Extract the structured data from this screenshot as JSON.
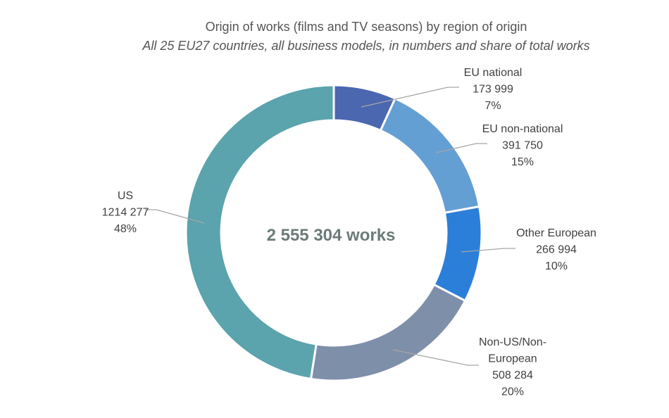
{
  "chart_data": {
    "type": "pie",
    "title": "Origin of works (films and TV seasons) by region of origin",
    "subtitle": "All 25 EU27 countries, all business models, in numbers and share of total works",
    "center_label": "2 555 304 works",
    "slices": [
      {
        "name": "EU national",
        "value": 173999,
        "value_label": "173 999",
        "share_label": "7%",
        "color": "#4a67b0"
      },
      {
        "name": "EU non-national",
        "value": 391750,
        "value_label": "391 750",
        "share_label": "15%",
        "color": "#649fd4"
      },
      {
        "name": "Other European",
        "value": 266994,
        "value_label": "266 994",
        "share_label": "10%",
        "color": "#2b7fd8"
      },
      {
        "name": "Non-US/Non-European",
        "value": 508284,
        "value_label": "508 284",
        "share_label": "20%",
        "color": "#7e8fa9"
      },
      {
        "name": "US",
        "value": 1214277,
        "value_label": "1214 277",
        "share_label": "48%",
        "color": "#5ba3ad"
      }
    ]
  }
}
